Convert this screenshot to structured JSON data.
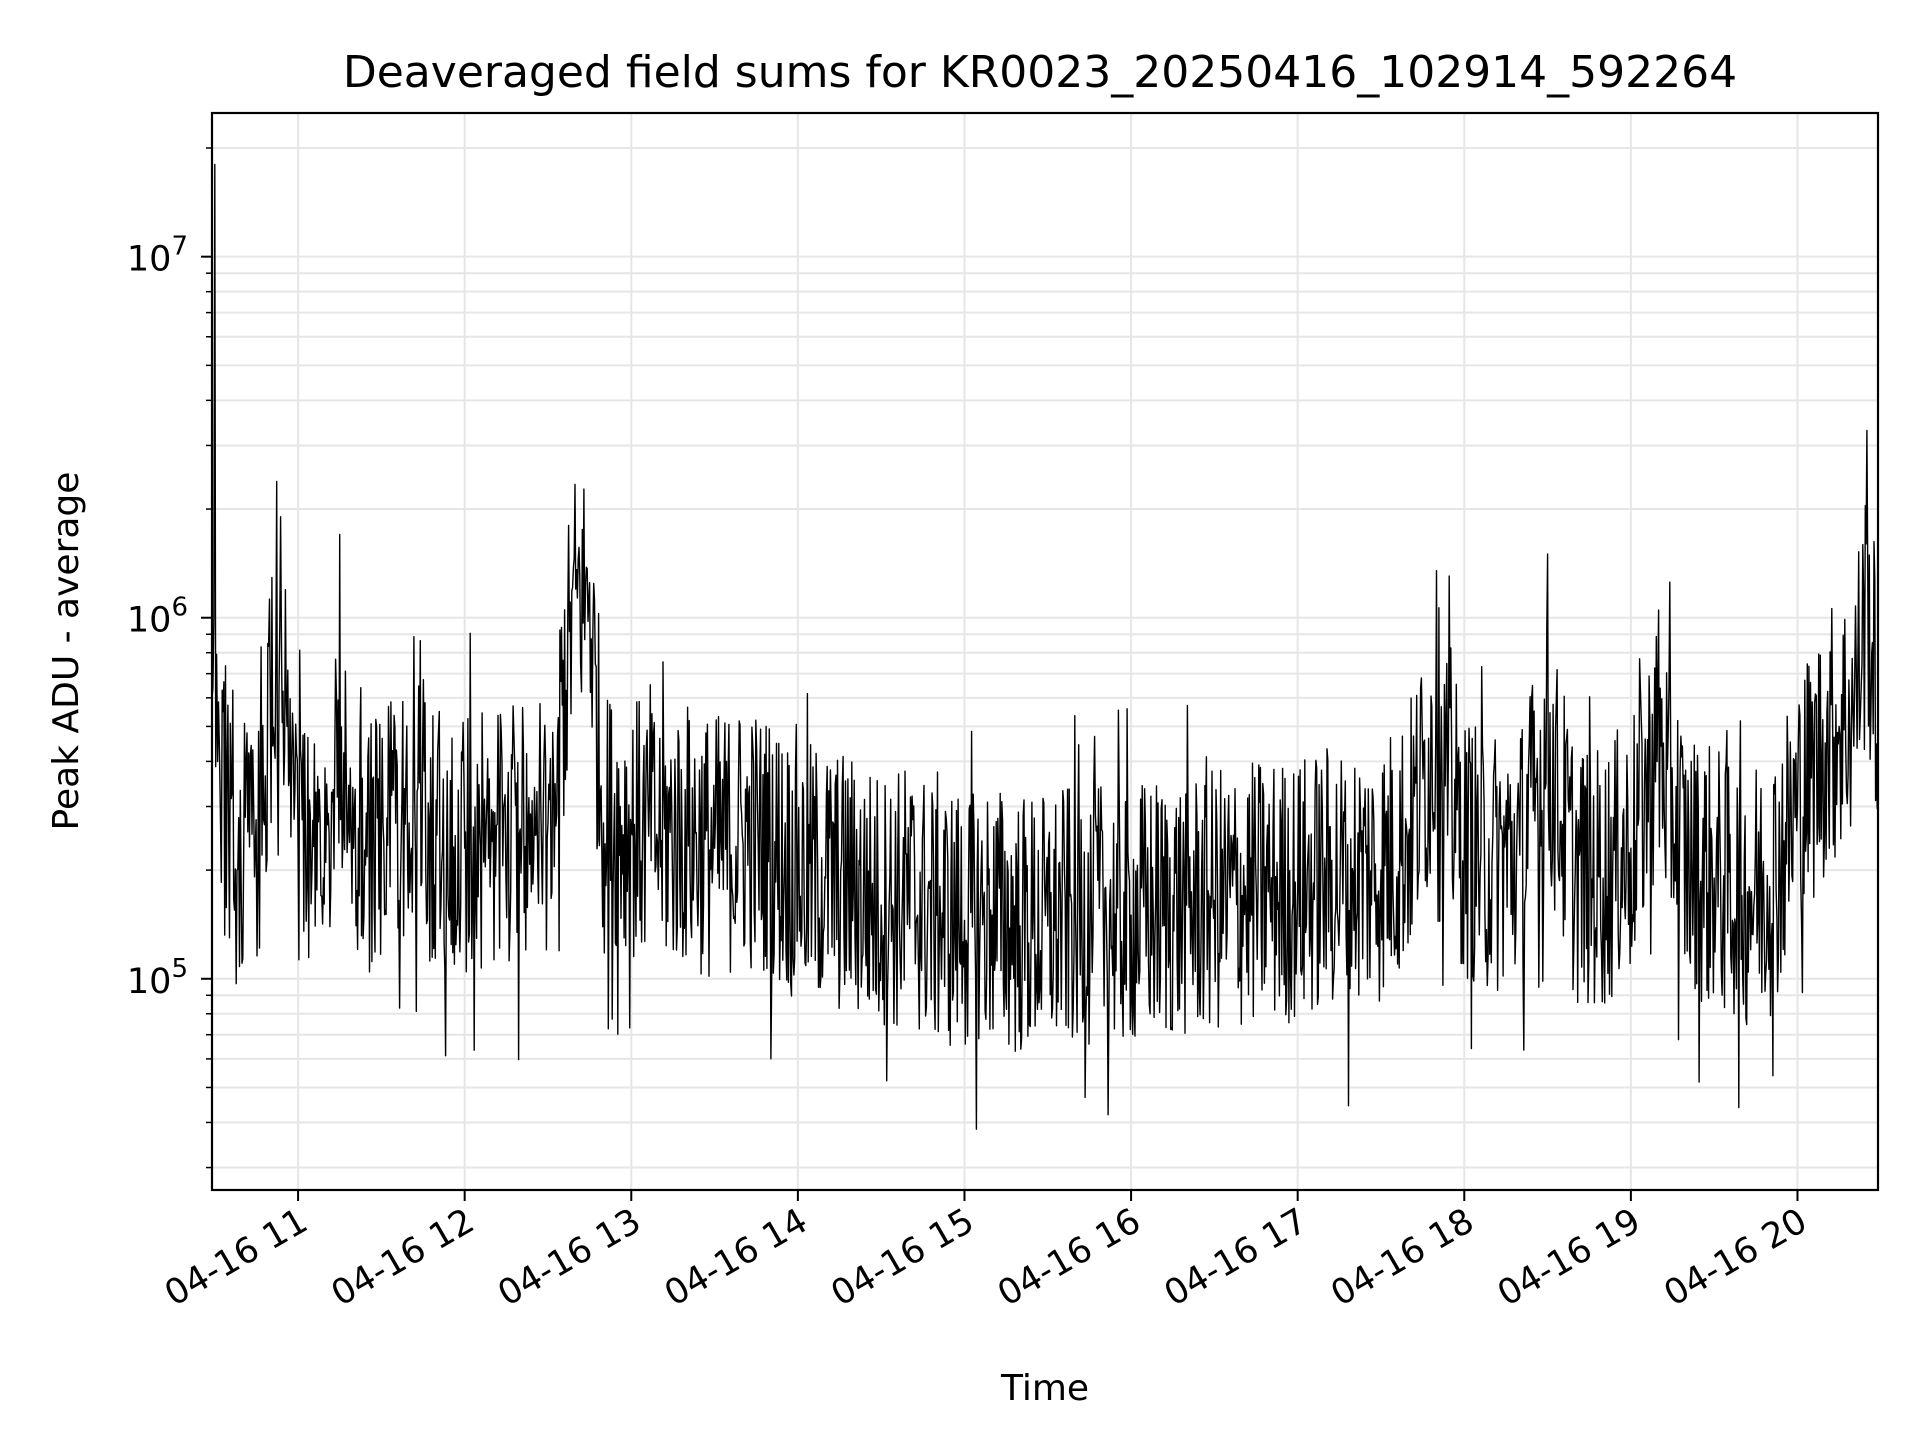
{
  "chart_data": {
    "type": "line",
    "title": "Deaveraged field sums for KR0023_20250416_102914_592264",
    "xlabel": "Time",
    "ylabel": "Peak ADU - average",
    "yscale": "log",
    "grid": true,
    "legend": "none",
    "line_color": "#000000",
    "xlim": [
      "2025-04-16 10:29",
      "2025-04-16 20:29"
    ],
    "ylim": [
      26000,
      25000000
    ],
    "x_ticks": [
      {
        "value": "2025-04-16 11:00",
        "label": "04-16 11"
      },
      {
        "value": "2025-04-16 12:00",
        "label": "04-16 12"
      },
      {
        "value": "2025-04-16 13:00",
        "label": "04-16 13"
      },
      {
        "value": "2025-04-16 14:00",
        "label": "04-16 14"
      },
      {
        "value": "2025-04-16 15:00",
        "label": "04-16 15"
      },
      {
        "value": "2025-04-16 16:00",
        "label": "04-16 16"
      },
      {
        "value": "2025-04-16 17:00",
        "label": "04-16 17"
      },
      {
        "value": "2025-04-16 18:00",
        "label": "04-16 18"
      },
      {
        "value": "2025-04-16 19:00",
        "label": "04-16 19"
      },
      {
        "value": "2025-04-16 20:00",
        "label": "04-16 20"
      }
    ],
    "y_ticks": [
      {
        "value": 100000,
        "base": "10",
        "exp": "5"
      },
      {
        "value": 1000000,
        "base": "10",
        "exp": "6"
      },
      {
        "value": 10000000,
        "base": "10",
        "exp": "7"
      }
    ],
    "series": [
      {
        "x": [
          "2025-04-16 10:29",
          "2025-04-16 10:30",
          "2025-04-16 10:31",
          "2025-04-16 10:32",
          "2025-04-16 10:33",
          "2025-04-16 10:35",
          "2025-04-16 10:38",
          "2025-04-16 10:41",
          "2025-04-16 10:44",
          "2025-04-16 10:47",
          "2025-04-16 10:50",
          "2025-04-16 10:52",
          "2025-04-16 10:54",
          "2025-04-16 10:56",
          "2025-04-16 11:00",
          "2025-04-16 11:05",
          "2025-04-16 11:10",
          "2025-04-16 11:15",
          "2025-04-16 11:20",
          "2025-04-16 11:30",
          "2025-04-16 11:40",
          "2025-04-16 11:50",
          "2025-04-16 12:00",
          "2025-04-16 12:10",
          "2025-04-16 12:20",
          "2025-04-16 12:30",
          "2025-04-16 12:40",
          "2025-04-16 12:45",
          "2025-04-16 12:50",
          "2025-04-16 13:00",
          "2025-04-16 13:10",
          "2025-04-16 13:20",
          "2025-04-16 13:30",
          "2025-04-16 13:40",
          "2025-04-16 13:50",
          "2025-04-16 14:00",
          "2025-04-16 14:10",
          "2025-04-16 14:20",
          "2025-04-16 14:30",
          "2025-04-16 14:40",
          "2025-04-16 14:50",
          "2025-04-16 15:00",
          "2025-04-16 15:10",
          "2025-04-16 15:20",
          "2025-04-16 15:30",
          "2025-04-16 15:40",
          "2025-04-16 15:50",
          "2025-04-16 16:00",
          "2025-04-16 16:10",
          "2025-04-16 16:20",
          "2025-04-16 16:30",
          "2025-04-16 16:40",
          "2025-04-16 16:50",
          "2025-04-16 17:00",
          "2025-04-16 17:10",
          "2025-04-16 17:20",
          "2025-04-16 17:30",
          "2025-04-16 17:40",
          "2025-04-16 17:50",
          "2025-04-16 18:00",
          "2025-04-16 18:10",
          "2025-04-16 18:20",
          "2025-04-16 18:30",
          "2025-04-16 18:40",
          "2025-04-16 18:50",
          "2025-04-16 19:00",
          "2025-04-16 19:10",
          "2025-04-16 19:20",
          "2025-04-16 19:30",
          "2025-04-16 19:40",
          "2025-04-16 19:50",
          "2025-04-16 20:00",
          "2025-04-16 20:05",
          "2025-04-16 20:10",
          "2025-04-16 20:15",
          "2025-04-16 20:20",
          "2025-04-16 20:25",
          "2025-04-16 20:29"
        ],
        "y": [
          600000,
          18000000,
          400000,
          300000,
          550000,
          250000,
          200000,
          280000,
          300000,
          220000,
          600000,
          800000,
          900000,
          500000,
          230000,
          200000,
          210000,
          1700000,
          230000,
          250000,
          270000,
          250000,
          230000,
          240000,
          260000,
          270000,
          1200000,
          1250000,
          270000,
          260000,
          250000,
          250000,
          230000,
          250000,
          230000,
          200000,
          190000,
          180000,
          160000,
          170000,
          150000,
          145000,
          150000,
          140000,
          140000,
          150000,
          150000,
          150000,
          155000,
          160000,
          165000,
          170000,
          175000,
          175000,
          190000,
          195000,
          200000,
          250000,
          1350000,
          230000,
          210000,
          220000,
          1500000,
          200000,
          190000,
          230000,
          1050000,
          210000,
          190000,
          170000,
          180000,
          300000,
          360000,
          450000,
          500000,
          550000,
          3300000,
          550000
        ]
      }
    ]
  }
}
